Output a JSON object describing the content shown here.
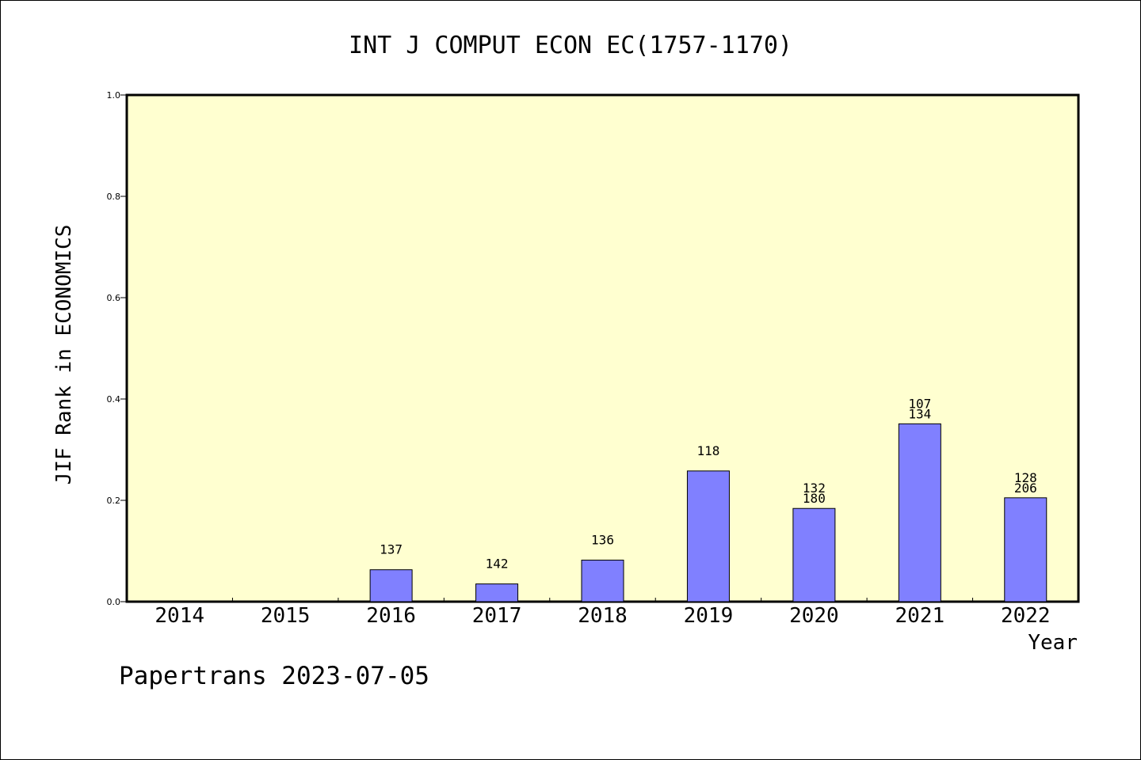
{
  "chart_data": {
    "type": "bar",
    "title": "INT J COMPUT ECON EC(1757-1170)",
    "xlabel": "Year",
    "ylabel": "JIF Rank in ECONOMICS",
    "ylim": [
      0,
      1.0
    ],
    "yticks": [
      "0.0",
      "0.2",
      "0.4",
      "0.6",
      "0.8",
      "1.0"
    ],
    "categories": [
      "2014",
      "2015",
      "2016",
      "2017",
      "2018",
      "2019",
      "2020",
      "2021",
      "2022"
    ],
    "values": [
      null,
      null,
      0.063,
      0.035,
      0.082,
      0.258,
      0.184,
      0.351,
      0.205
    ],
    "bar_labels": [
      [],
      [],
      [
        "137"
      ],
      [
        "142"
      ],
      [
        "136"
      ],
      [
        "118"
      ],
      [
        "132",
        "180"
      ],
      [
        "107",
        "134"
      ],
      [
        "128",
        "206"
      ]
    ],
    "grid": false,
    "colors": {
      "plot_background": "#ffffd0",
      "bar_fill": "#8080ff",
      "bar_stroke": "#000000",
      "axis": "#000000"
    }
  },
  "footer": {
    "credit": "Papertrans 2023-07-05"
  }
}
